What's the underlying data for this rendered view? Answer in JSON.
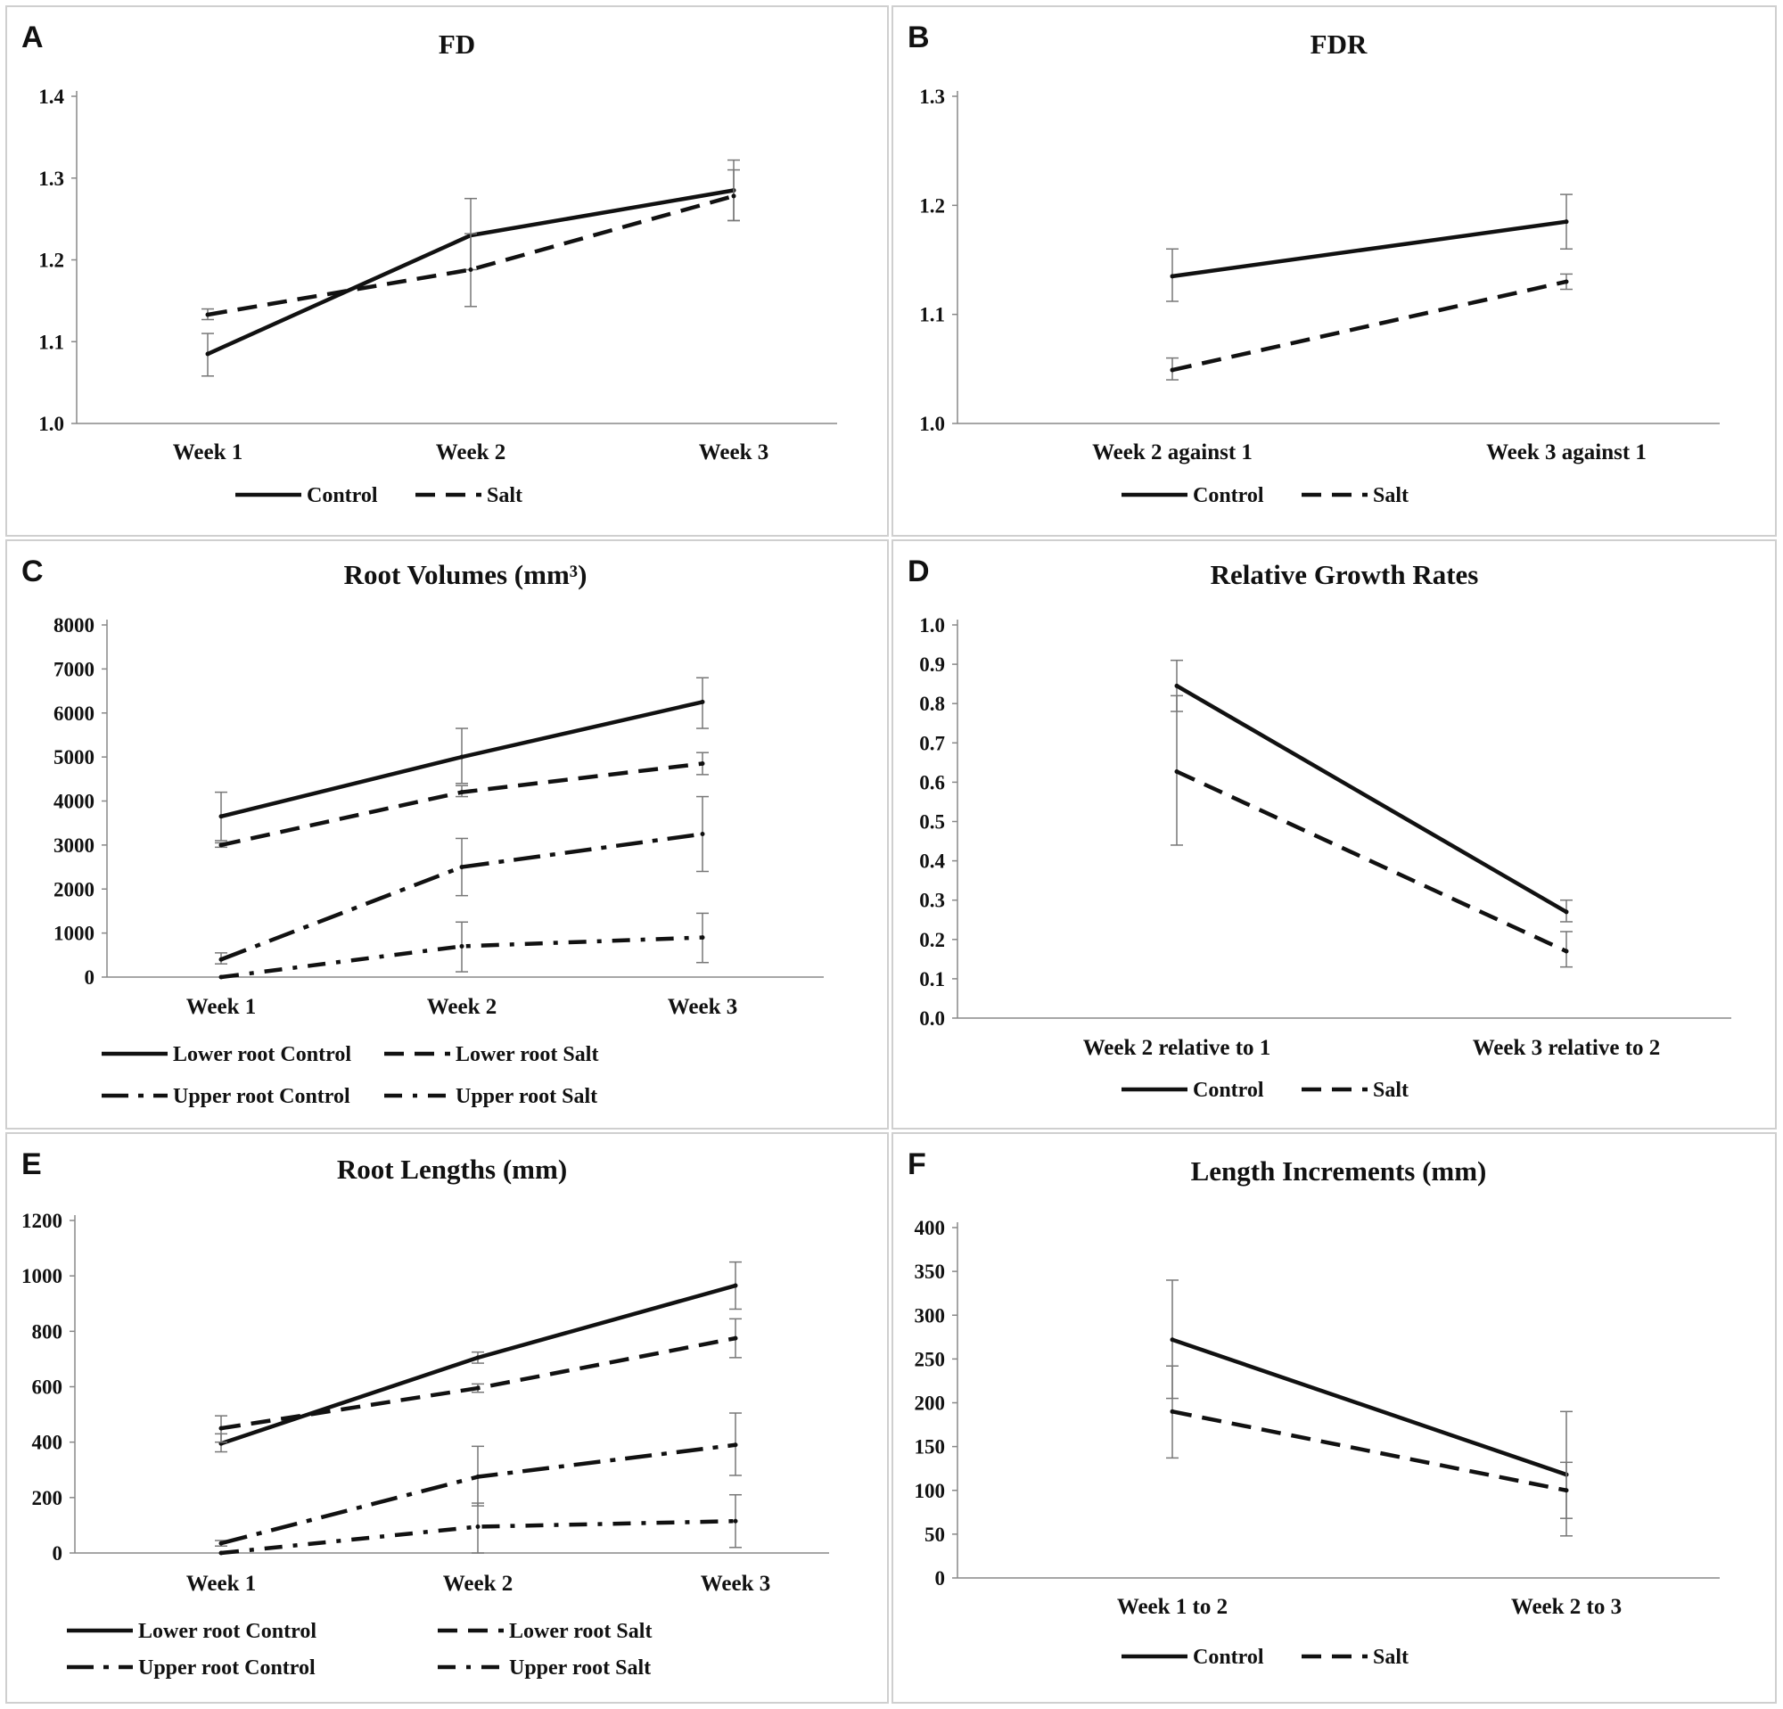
{
  "chart_data": [
    {
      "panel_letter": "A",
      "type": "line",
      "title": "FD",
      "categories": [
        "Week 1",
        "Week 2",
        "Week 3"
      ],
      "ylim": [
        1.0,
        1.4
      ],
      "yticks": [
        "1.0",
        "1.1",
        "1.2",
        "1.3",
        "1.4"
      ],
      "legend_layout": "single-row",
      "series": [
        {
          "name": "Control",
          "style": "solid",
          "values": [
            1.085,
            1.23,
            1.285
          ],
          "err_low": [
            1.058,
            1.188,
            1.248
          ],
          "err_high": [
            1.11,
            1.275,
            1.322
          ]
        },
        {
          "name": "Salt",
          "style": "dash",
          "values": [
            1.133,
            1.188,
            1.278
          ],
          "err_low": [
            1.127,
            1.143,
            1.248
          ],
          "err_high": [
            1.14,
            1.232,
            1.31
          ]
        }
      ]
    },
    {
      "panel_letter": "B",
      "type": "line",
      "title": "FDR",
      "categories": [
        "Week 2 against 1",
        "Week 3 against 1"
      ],
      "ylim": [
        1.0,
        1.3
      ],
      "yticks": [
        "1.0",
        "1.1",
        "1.2",
        "1.3"
      ],
      "legend_layout": "single-row",
      "series": [
        {
          "name": "Control",
          "style": "solid",
          "values": [
            1.135,
            1.185
          ],
          "err_low": [
            1.112,
            1.16
          ],
          "err_high": [
            1.16,
            1.21
          ]
        },
        {
          "name": "Salt",
          "style": "dash",
          "values": [
            1.049,
            1.13
          ],
          "err_low": [
            1.04,
            1.123
          ],
          "err_high": [
            1.06,
            1.137
          ]
        }
      ]
    },
    {
      "panel_letter": "C",
      "type": "line",
      "title": "Root Volumes (mm³)",
      "categories": [
        "Week 1",
        "Week 2",
        "Week 3"
      ],
      "ylim": [
        0,
        8000
      ],
      "yticks": [
        "0",
        "1000",
        "2000",
        "3000",
        "4000",
        "5000",
        "6000",
        "7000",
        "8000"
      ],
      "legend_layout": "two-rows-tight",
      "series": [
        {
          "name": "Lower root Control",
          "style": "solid",
          "values": [
            3650,
            5000,
            6250
          ],
          "err_low": [
            3100,
            4400,
            5650
          ],
          "err_high": [
            4200,
            5650,
            6800
          ]
        },
        {
          "name": "Lower root Salt",
          "style": "dash",
          "values": [
            3000,
            4200,
            4850
          ],
          "err_low": [
            2950,
            4100,
            4600
          ],
          "err_high": [
            3050,
            4350,
            5100
          ]
        },
        {
          "name": "Upper root Control",
          "style": "dashdot",
          "values": [
            400,
            2500,
            3250
          ],
          "err_low": [
            300,
            1850,
            2400
          ],
          "err_high": [
            550,
            3150,
            4100
          ]
        },
        {
          "name": "Upper root Salt",
          "style": "dashdot-small",
          "values": [
            0,
            700,
            900
          ],
          "err_low": [
            0,
            120,
            330
          ],
          "err_high": [
            0,
            1250,
            1450
          ]
        }
      ]
    },
    {
      "panel_letter": "D",
      "type": "line",
      "title": "Relative Growth Rates",
      "categories": [
        "Week 2 relative to 1",
        "Week 3 relative to 2"
      ],
      "ylim": [
        0.0,
        1.0
      ],
      "yticks": [
        "0.0",
        "0.1",
        "0.2",
        "0.3",
        "0.4",
        "0.5",
        "0.6",
        "0.7",
        "0.8",
        "0.9",
        "1.0"
      ],
      "legend_layout": "single-row",
      "series": [
        {
          "name": "Control",
          "style": "solid",
          "values": [
            0.845,
            0.27
          ],
          "err_low": [
            0.78,
            0.245
          ],
          "err_high": [
            0.91,
            0.3
          ]
        },
        {
          "name": "Salt",
          "style": "dash",
          "values": [
            0.627,
            0.17
          ],
          "err_low": [
            0.44,
            0.13
          ],
          "err_high": [
            0.82,
            0.22
          ]
        }
      ]
    },
    {
      "panel_letter": "E",
      "type": "line",
      "title": "Root Lengths (mm)",
      "categories": [
        "Week 1",
        "Week 2",
        "Week 3"
      ],
      "ylim": [
        0,
        1200
      ],
      "yticks": [
        "0",
        "200",
        "400",
        "600",
        "800",
        "1000",
        "1200"
      ],
      "legend_layout": "two-rows-wide",
      "series": [
        {
          "name": "Lower root Control",
          "style": "solid",
          "values": [
            395,
            705,
            965
          ],
          "err_low": [
            365,
            685,
            880
          ],
          "err_high": [
            430,
            725,
            1050
          ]
        },
        {
          "name": "Lower root Salt",
          "style": "dash",
          "values": [
            450,
            595,
            775
          ],
          "err_low": [
            400,
            580,
            705
          ],
          "err_high": [
            495,
            610,
            845
          ]
        },
        {
          "name": "Upper root Control",
          "style": "dashdot",
          "values": [
            35,
            275,
            390
          ],
          "err_low": [
            25,
            170,
            280
          ],
          "err_high": [
            45,
            385,
            505
          ]
        },
        {
          "name": "Upper root Salt",
          "style": "dashdot-small",
          "values": [
            0,
            95,
            115
          ],
          "err_low": [
            0,
            0,
            20
          ],
          "err_high": [
            0,
            180,
            210
          ]
        }
      ]
    },
    {
      "panel_letter": "F",
      "type": "line",
      "title": "Length Increments (mm)",
      "categories": [
        "Week 1 to 2",
        "Week 2 to 3"
      ],
      "ylim": [
        0,
        400
      ],
      "yticks": [
        "0",
        "50",
        "100",
        "150",
        "200",
        "250",
        "300",
        "350",
        "400"
      ],
      "legend_layout": "single-row",
      "series": [
        {
          "name": "Control",
          "style": "solid",
          "values": [
            272,
            118
          ],
          "err_low": [
            205,
            48
          ],
          "err_high": [
            340,
            190
          ]
        },
        {
          "name": "Salt",
          "style": "dash",
          "values": [
            190,
            100
          ],
          "err_low": [
            137,
            68
          ],
          "err_high": [
            242,
            132
          ]
        }
      ]
    }
  ]
}
